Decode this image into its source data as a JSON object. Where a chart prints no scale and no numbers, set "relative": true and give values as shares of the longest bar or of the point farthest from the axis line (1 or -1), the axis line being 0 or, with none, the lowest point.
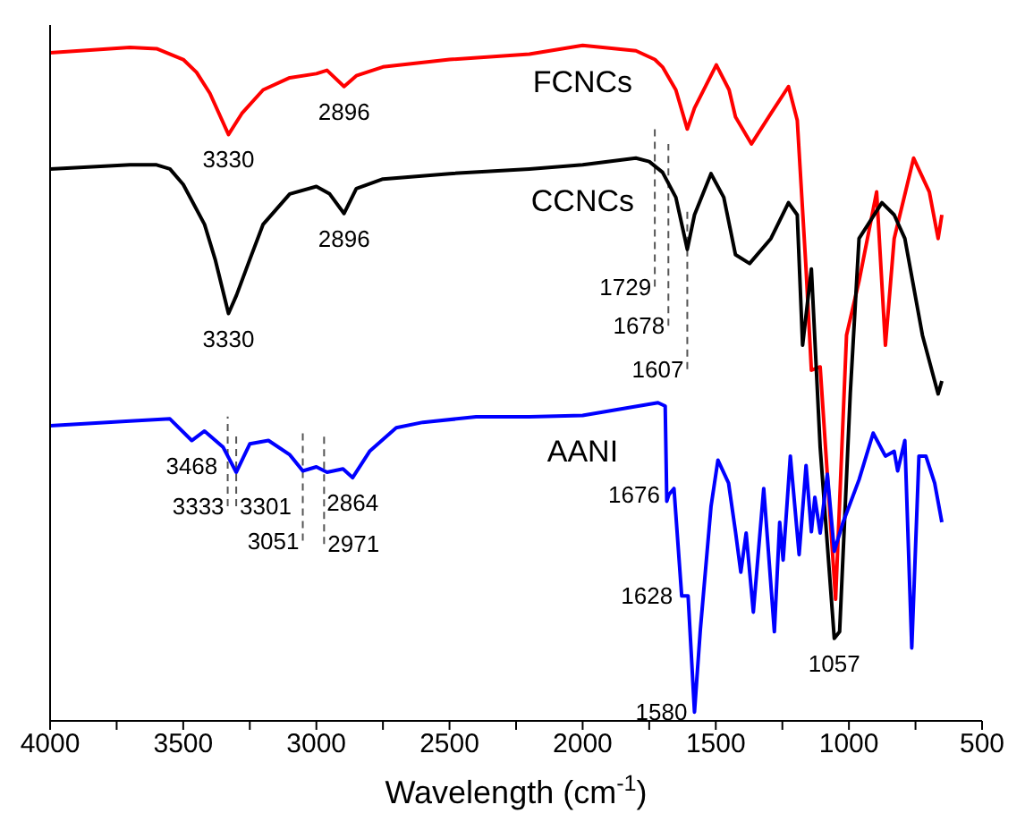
{
  "chart_data": {
    "type": "line",
    "relative": true,
    "xlabel": "Wavelength (cm$^{-1}$)",
    "xlim": [
      4000,
      500
    ],
    "xticks": [
      4000,
      {
        "value": 3750,
        "label": null
      },
      3500,
      {
        "value": 3250,
        "label": null
      },
      3000,
      {
        "value": 2750,
        "label": null
      },
      2500,
      {
        "value": 2250,
        "label": null
      },
      2000,
      {
        "value": 1750,
        "label": null
      },
      1500,
      {
        "value": 1250,
        "label": null
      },
      1000,
      {
        "value": 750,
        "label": null
      },
      500
    ],
    "series": [
      {
        "name": "FCNCs",
        "color": "#ff0000",
        "x": [
          4000,
          3700,
          3600,
          3500,
          3450,
          3400,
          3330,
          3280,
          3200,
          3100,
          3000,
          2960,
          2896,
          2850,
          2750,
          2500,
          2200,
          2000,
          1800,
          1729,
          1700,
          1650,
          1607,
          1580,
          1498,
          1450,
          1426,
          1366,
          1293,
          1227,
          1194,
          1161,
          1141,
          1108,
          1050,
          1009,
          962,
          896,
          863,
          830,
          757,
          698,
          665,
          651
        ],
        "values": [
          0.989,
          0.997,
          0.995,
          0.979,
          0.96,
          0.929,
          0.868,
          0.899,
          0.934,
          0.952,
          0.958,
          0.963,
          0.939,
          0.955,
          0.968,
          0.979,
          0.987,
          1.0,
          0.992,
          0.979,
          0.968,
          0.934,
          0.876,
          0.907,
          0.971,
          0.934,
          0.894,
          0.854,
          0.899,
          0.939,
          0.889,
          0.669,
          0.519,
          0.524,
          0.18,
          0.571,
          0.651,
          0.783,
          0.556,
          0.714,
          0.833,
          0.783,
          0.714,
          0.749
        ]
      },
      {
        "name": "CCNCs",
        "color": "#000000",
        "x": [
          4000,
          3700,
          3600,
          3550,
          3500,
          3420,
          3380,
          3330,
          3300,
          3250,
          3200,
          3100,
          3000,
          2950,
          2896,
          2850,
          2750,
          2500,
          2200,
          2000,
          1800,
          1750,
          1700,
          1650,
          1607,
          1580,
          1518,
          1470,
          1426,
          1373,
          1293,
          1227,
          1194,
          1174,
          1141,
          1108,
          1055,
          1035,
          995,
          962,
          876,
          830,
          790,
          724,
          665,
          651
        ],
        "values": [
          0.817,
          0.823,
          0.823,
          0.817,
          0.794,
          0.735,
          0.683,
          0.603,
          0.63,
          0.683,
          0.735,
          0.78,
          0.791,
          0.78,
          0.751,
          0.788,
          0.802,
          0.81,
          0.817,
          0.823,
          0.833,
          0.828,
          0.812,
          0.775,
          0.698,
          0.749,
          0.81,
          0.775,
          0.69,
          0.677,
          0.714,
          0.767,
          0.749,
          0.556,
          0.669,
          0.405,
          0.122,
          0.132,
          0.484,
          0.714,
          0.767,
          0.749,
          0.714,
          0.571,
          0.484,
          0.503
        ]
      },
      {
        "name": "AANI",
        "color": "#0000ff",
        "x": [
          4000,
          3700,
          3550,
          3468,
          3420,
          3350,
          3301,
          3250,
          3180,
          3100,
          3051,
          3000,
          2960,
          2900,
          2864,
          2800,
          2700,
          2600,
          2400,
          2200,
          2000,
          1717,
          1690,
          1684,
          1676,
          1657,
          1628,
          1604,
          1580,
          1558,
          1518,
          1492,
          1452,
          1426,
          1406,
          1386,
          1359,
          1320,
          1280,
          1260,
          1247,
          1220,
          1187,
          1161,
          1141,
          1128,
          1108,
          1081,
          1055,
          1022,
          962,
          909,
          863,
          830,
          817,
          790,
          764,
          737,
          711,
          678,
          651
        ],
        "values": [
          0.437,
          0.444,
          0.447,
          0.415,
          0.429,
          0.405,
          0.368,
          0.41,
          0.415,
          0.394,
          0.37,
          0.376,
          0.368,
          0.373,
          0.36,
          0.399,
          0.434,
          0.442,
          0.45,
          0.45,
          0.452,
          0.471,
          0.466,
          0.325,
          0.335,
          0.344,
          0.185,
          0.185,
          0.013,
          0.135,
          0.317,
          0.386,
          0.352,
          0.28,
          0.22,
          0.278,
          0.161,
          0.344,
          0.132,
          0.294,
          0.238,
          0.392,
          0.246,
          0.378,
          0.28,
          0.331,
          0.278,
          0.365,
          0.251,
          0.294,
          0.357,
          0.426,
          0.392,
          0.399,
          0.37,
          0.415,
          0.108,
          0.392,
          0.392,
          0.352,
          0.294
        ]
      }
    ],
    "ref_lines": [
      {
        "axis": "x",
        "value": 1729,
        "line_style": "dashed",
        "color": "#555555"
      },
      {
        "axis": "x",
        "value": 1678,
        "line_style": "dashed",
        "color": "#555555"
      },
      {
        "axis": "x",
        "value": 1607,
        "line_style": "dashed",
        "color": "#555555"
      },
      {
        "axis": "x",
        "value": 3333,
        "line_style": "dashed",
        "color": "#555555"
      },
      {
        "axis": "x",
        "value": 3301,
        "line_style": "dashed",
        "color": "#555555"
      },
      {
        "axis": "x",
        "value": 3051,
        "line_style": "dashed",
        "color": "#555555"
      },
      {
        "axis": "x",
        "value": 2971,
        "line_style": "dashed",
        "color": "#555555"
      }
    ],
    "annotations": [
      {
        "text": "3330",
        "x": 3330,
        "y": 0.868
      },
      {
        "text": "2896",
        "x": 2896,
        "y": 0.939
      },
      {
        "text": "3330",
        "x": 3330,
        "y": 0.603
      },
      {
        "text": "2896",
        "x": 2896,
        "y": 0.751
      },
      {
        "text": "1729",
        "x": 1729,
        "y": 0.656
      },
      {
        "text": "1678",
        "x": 1678,
        "y": 0.598
      },
      {
        "text": "1607",
        "x": 1607,
        "y": 0.534
      },
      {
        "text": "3468",
        "x": 3468,
        "y": 0.415
      },
      {
        "text": "3333",
        "x": 3333,
        "y": 0.331
      },
      {
        "text": "3301",
        "x": 3301,
        "y": 0.331
      },
      {
        "text": "3051",
        "x": 3051,
        "y": 0.28
      },
      {
        "text": "2971",
        "x": 2971,
        "y": 0.275
      },
      {
        "text": "2864",
        "x": 2864,
        "y": 0.36
      },
      {
        "text": "1676",
        "x": 1676,
        "y": 0.335
      },
      {
        "text": "1628",
        "x": 1628,
        "y": 0.185
      },
      {
        "text": "1580",
        "x": 1580,
        "y": 0.013
      },
      {
        "text": "1057",
        "x": 1055,
        "y": 0.122
      }
    ]
  }
}
